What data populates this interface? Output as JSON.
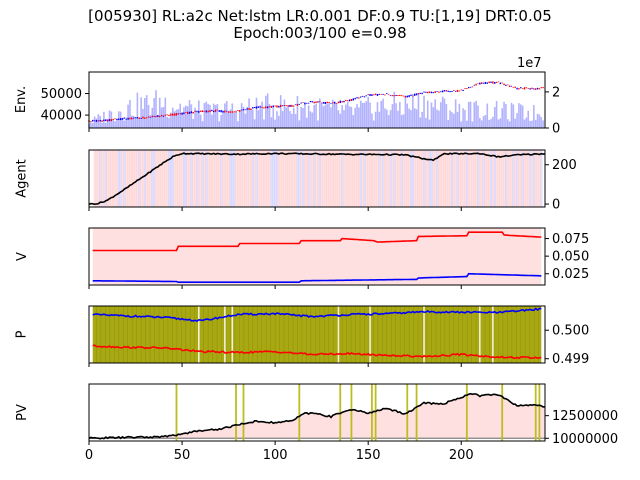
{
  "figure": {
    "title_line1": "[005930] RL:a2c Net:lstm LR:0.001 DF:0.9 TU:[1,19] DRT:0.05",
    "title_line2": "Epoch:003/100 e=0.98"
  },
  "chart_data": [
    {
      "type": "line",
      "panel": "env",
      "ylabel": "Env.",
      "xlim": [
        0,
        245
      ],
      "ylim": [
        34000,
        60000
      ],
      "yticks": [
        40000,
        50000
      ],
      "ytick_labels": [
        "40000",
        "50000"
      ],
      "twin_ylim": [
        0,
        31000000
      ],
      "twin_yticks": [
        0,
        20000000
      ],
      "twin_ytick_labels": [
        "0",
        "2"
      ],
      "twin_offset_label": "1e7",
      "series": [
        {
          "role": "price",
          "color": "#000000",
          "x": [
            0,
            10,
            20,
            30,
            40,
            50,
            60,
            70,
            75,
            80,
            85,
            90,
            100,
            110,
            115,
            120,
            130,
            140,
            150,
            160,
            170,
            180,
            190,
            200,
            210,
            215,
            220,
            230,
            240,
            245
          ],
          "values": [
            37200,
            37500,
            38400,
            38800,
            39700,
            40700,
            41700,
            42000,
            41400,
            42000,
            42600,
            43400,
            44000,
            44400,
            45400,
            46100,
            45500,
            46800,
            49300,
            49600,
            48500,
            50400,
            51000,
            51400,
            54700,
            55200,
            55000,
            52500,
            52200,
            52600
          ]
        },
        {
          "role": "volume",
          "color": "#0000ff",
          "opacity": 0.3,
          "x": [
            0,
            20,
            40,
            60,
            80,
            100,
            120,
            140,
            160,
            180,
            200,
            220,
            240
          ],
          "values": [
            3000000,
            11000000,
            14000000,
            9000000,
            10000000,
            12000000,
            11000000,
            9000000,
            12000000,
            13000000,
            10000000,
            9000000,
            8000000
          ]
        }
      ]
    },
    {
      "type": "line",
      "panel": "agent",
      "ylabel": "Agent",
      "xlim": [
        0,
        245
      ],
      "ylim": [
        -15,
        275
      ],
      "yticks": [
        0,
        200
      ],
      "ytick_labels": [
        "0",
        "200"
      ],
      "background": {
        "sell_color": "#ff9999",
        "buy_color": "#9999ff",
        "opacity": 0.3
      },
      "series": [
        {
          "role": "num_stocks",
          "color": "#000000",
          "x": [
            0,
            5,
            10,
            20,
            30,
            40,
            45,
            50,
            60,
            80,
            100,
            120,
            140,
            160,
            170,
            180,
            185,
            190,
            200,
            210,
            220,
            230,
            240,
            245
          ],
          "values": [
            0,
            3,
            20,
            80,
            145,
            210,
            240,
            258,
            256,
            254,
            257,
            255,
            253,
            252,
            250,
            230,
            222,
            255,
            256,
            257,
            240,
            250,
            254,
            256
          ]
        }
      ]
    },
    {
      "type": "line",
      "panel": "value",
      "ylabel": "V",
      "xlim": [
        0,
        245
      ],
      "ylim": [
        0.009,
        0.09
      ],
      "yticks": [
        0.025,
        0.05,
        0.075
      ],
      "ytick_labels": [
        "0.025",
        "0.050",
        "0.075"
      ],
      "background_color": "#ff9999",
      "series": [
        {
          "role": "value_sell",
          "color": "#ff0000",
          "x": [
            2,
            47,
            48,
            80,
            81,
            113,
            114,
            135,
            136,
            153,
            155,
            176,
            177,
            203,
            204,
            222,
            223,
            243
          ],
          "values": [
            0.058,
            0.058,
            0.064,
            0.064,
            0.068,
            0.068,
            0.072,
            0.072,
            0.075,
            0.072,
            0.07,
            0.072,
            0.078,
            0.079,
            0.084,
            0.084,
            0.08,
            0.077
          ]
        },
        {
          "role": "value_buy",
          "color": "#0000ff",
          "x": [
            2,
            47,
            48,
            113,
            114,
            176,
            177,
            203,
            204,
            243
          ],
          "values": [
            0.015,
            0.014,
            0.013,
            0.013,
            0.015,
            0.017,
            0.019,
            0.021,
            0.025,
            0.022
          ]
        }
      ]
    },
    {
      "type": "line",
      "panel": "policy",
      "ylabel": "P",
      "xlim": [
        0,
        245
      ],
      "ylim": [
        0.49885,
        0.50085
      ],
      "yticks": [
        0.499,
        0.5
      ],
      "ytick_labels": [
        "0.499",
        "0.500"
      ],
      "background_color": "#a8a812",
      "exploration_x": [
        59,
        73,
        77,
        134,
        151,
        180,
        210,
        217
      ],
      "series": [
        {
          "role": "policy_buy",
          "color": "#0000ff",
          "x": [
            2,
            20,
            40,
            60,
            80,
            100,
            120,
            140,
            160,
            180,
            200,
            220,
            243
          ],
          "values": [
            0.50055,
            0.5005,
            0.50045,
            0.50033,
            0.50055,
            0.50058,
            0.50048,
            0.50055,
            0.50058,
            0.50065,
            0.50063,
            0.50062,
            0.50075
          ]
        },
        {
          "role": "policy_sell",
          "color": "#ff0000",
          "x": [
            2,
            20,
            40,
            60,
            80,
            100,
            120,
            140,
            160,
            180,
            200,
            220,
            243
          ],
          "values": [
            0.49945,
            0.4994,
            0.49938,
            0.49925,
            0.49922,
            0.49925,
            0.49915,
            0.49918,
            0.49912,
            0.49908,
            0.49915,
            0.49905,
            0.49903
          ]
        }
      ]
    },
    {
      "type": "line",
      "panel": "pv",
      "ylabel": "PV",
      "xlim": [
        0,
        245
      ],
      "ylim": [
        9700000,
        16000000
      ],
      "yticks": [
        10000000,
        12500000
      ],
      "ytick_labels": [
        "10000000",
        "12500000"
      ],
      "xticks": [
        0,
        50,
        100,
        150,
        200
      ],
      "xtick_labels": [
        "0",
        "50",
        "100",
        "150",
        "200"
      ],
      "baseline": 10000000,
      "learning_x": [
        47,
        79,
        83,
        113,
        135,
        141,
        152,
        154,
        171,
        176,
        203,
        222,
        240,
        242
      ],
      "series": [
        {
          "role": "portfolio_value",
          "color": "#000000",
          "x": [
            0,
            10,
            20,
            30,
            40,
            45,
            50,
            60,
            70,
            80,
            90,
            100,
            110,
            115,
            120,
            130,
            140,
            150,
            160,
            170,
            180,
            190,
            200,
            205,
            210,
            215,
            220,
            230,
            240,
            245
          ],
          "values": [
            10000000,
            10050000,
            10100000,
            10120000,
            10180000,
            10300000,
            10500000,
            10850000,
            11000000,
            11500000,
            11900000,
            11700000,
            12000000,
            12700000,
            12800000,
            12400000,
            13200000,
            12800000,
            13300000,
            12700000,
            13900000,
            13800000,
            14500000,
            15000000,
            14700000,
            14800000,
            14800000,
            13600000,
            13700000,
            13500000
          ]
        }
      ]
    }
  ]
}
